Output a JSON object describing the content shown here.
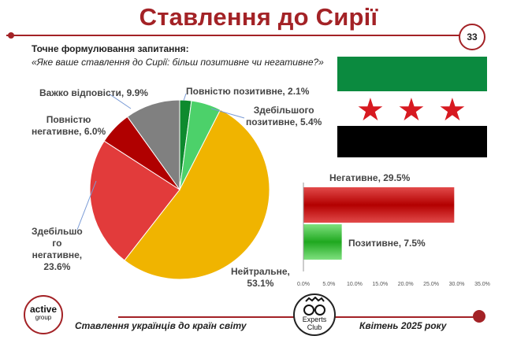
{
  "header": {
    "title": "Ставлення до Сирії",
    "page_number": "33"
  },
  "question": {
    "label": "Точне формулювання запитання:",
    "text": "«Яке ваше ставлення до Сирії: більш позитивне чи негативне?»"
  },
  "chart_data": [
    {
      "type": "pie",
      "slices": [
        {
          "label": "Повністю позитивне",
          "value": 2.1,
          "display": "Повністю позитивне, 2.1%",
          "color": "#0e8a2e"
        },
        {
          "label": "Здебільшого позитивне",
          "value": 5.4,
          "display": "Здебільшого позитивне, 5.4%",
          "color": "#4cd16a"
        },
        {
          "label": "Нейтральне",
          "value": 53.1,
          "display": "Нейтральне, 53.1%",
          "color": "#f0b400"
        },
        {
          "label": "Здебільшого негативне",
          "value": 23.6,
          "display": "Здебільшого негативне, 23.6%",
          "color": "#e23b3b"
        },
        {
          "label": "Повністю негативне",
          "value": 6.0,
          "display": "Повністю негативне, 6.0%",
          "color": "#b00000"
        },
        {
          "label": "Важко відповісти",
          "value": 9.9,
          "display": "Важко відповісти, 9.9%",
          "color": "#808080"
        }
      ]
    },
    {
      "type": "bar",
      "orientation": "horizontal",
      "categories": [
        "Негативне",
        "Позитивне"
      ],
      "values": [
        29.5,
        7.5
      ],
      "labels": [
        "Негативне, 29.5%",
        "Позитивне, 7.5%"
      ],
      "colors": [
        "#b30000",
        "#1fa81f"
      ],
      "xlim": [
        0,
        35
      ],
      "ticks": [
        "0.0%",
        "5.0%",
        "10.0%",
        "15.0%",
        "20.0%",
        "25.0%",
        "30.0%",
        "35.0%"
      ]
    }
  ],
  "pie_labels": {
    "full_pos": "Повністю позитивне, 2.1%",
    "mostly_pos_1": "Здебільшого",
    "mostly_pos_2": "позитивне, 5.4%",
    "neutral_1": "Нейтральне,",
    "neutral_2": "53.1%",
    "mostly_neg_1": "Здебільшо",
    "mostly_neg_2": "го",
    "mostly_neg_3": "негативне,",
    "mostly_neg_4": "23.6%",
    "full_neg_1": "Повністю",
    "full_neg_2": "негативне, 6.0%",
    "hard": "Важко відповісти, 9.9%"
  },
  "flag": {
    "colors": {
      "green": "#0b8a3f",
      "white": "#ffffff",
      "black": "#000000",
      "star": "#d71920"
    },
    "star_icon": "★"
  },
  "footer": {
    "left_text": "Ставлення українців до країн світу",
    "right_text": "Квітень 2025 року",
    "logo_active_1": "active",
    "logo_active_2": "group",
    "logo_experts_1": "Experts",
    "logo_experts_2": "Club"
  }
}
